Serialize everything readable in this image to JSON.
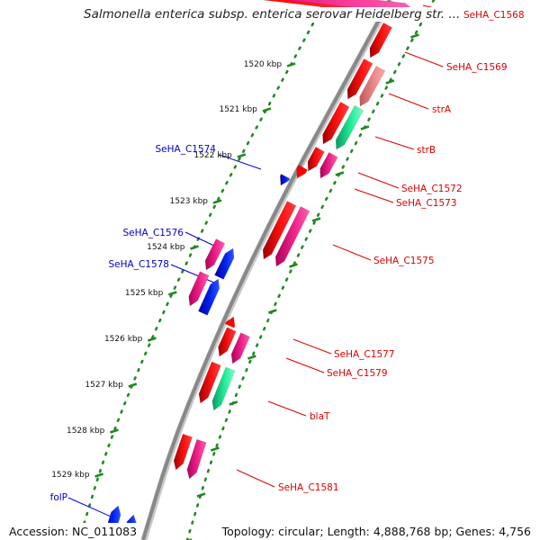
{
  "title": "Salmonella enterica subsp. enterica serovar Heidelberg str. ...",
  "footer": {
    "accession": "Accession: NC_011083",
    "summary": "Topology: circular; Length: 4,888,768 bp; Genes: 4,756"
  },
  "colors": {
    "red": "#ff0000",
    "pink": "#ee1188",
    "salmon": "#ee8080",
    "green": "#22ee99",
    "blue": "#0022ee",
    "tick_green": "#228822",
    "label_red": "#dd0000",
    "label_blue": "#0000cc",
    "backbone": "#888888"
  },
  "kbp_ticks": [
    "1520 kbp",
    "1521 kbp",
    "1522 kbp",
    "1523 kbp",
    "1524 kbp",
    "1525 kbp",
    "1526 kbp",
    "1527 kbp",
    "1528 kbp",
    "1529 kbp"
  ],
  "gene_labels_right": [
    "SeHA_C1568",
    "SeHA_C1569",
    "strA",
    "strB",
    "SeHA_C1572",
    "SeHA_C1573",
    "SeHA_C1575",
    "SeHA_C1577",
    "SeHA_C1579",
    "blaT",
    "SeHA_C1581"
  ],
  "gene_labels_left": [
    "SeHA_C1574",
    "SeHA_C1576",
    "SeHA_C1578",
    "folP"
  ]
}
